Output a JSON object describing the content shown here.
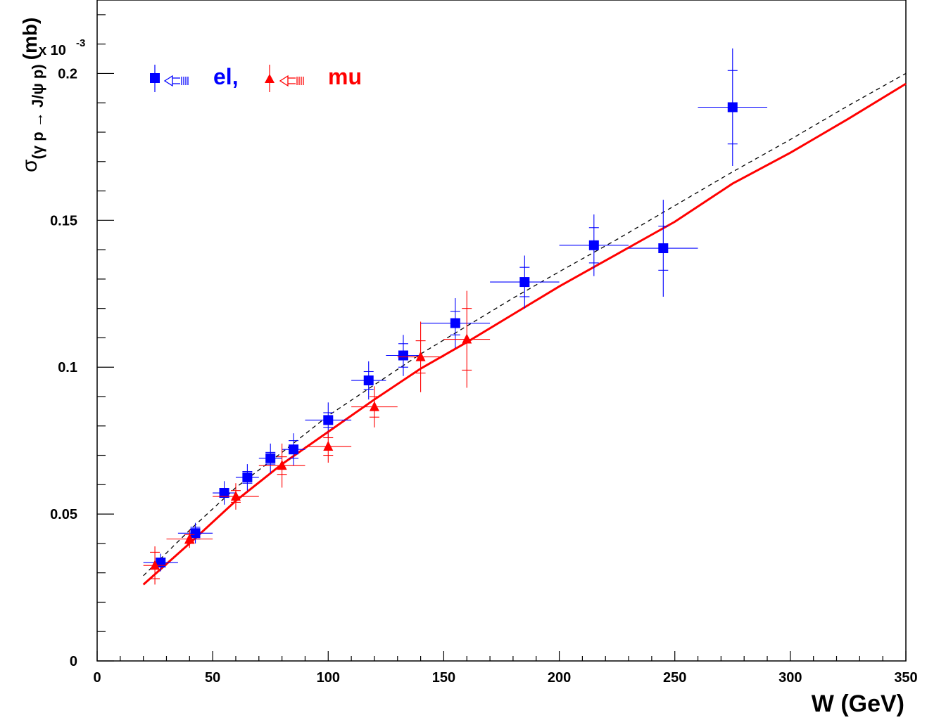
{
  "chart_data": {
    "type": "scatter",
    "title": "",
    "xlabel": "W (GeV)",
    "ylabel": {
      "main": "σ",
      "subscript": "(γ p → J/ψ p)",
      "unit": "(mb)",
      "multiplier": "x 10",
      "exponent": "-3"
    },
    "xlim": [
      0,
      350
    ],
    "ylim": [
      0,
      0.225
    ],
    "x_ticks": [
      0,
      50,
      100,
      150,
      200,
      250,
      300,
      350
    ],
    "x_tick_labels": [
      "0",
      "50",
      "100",
      "150",
      "200",
      "250",
      "300",
      "350"
    ],
    "y_ticks": [
      0,
      0.05,
      0.1,
      0.15,
      0.2
    ],
    "y_tick_labels": [
      "0",
      "0.05",
      "0.1",
      "0.15",
      "0.2"
    ],
    "grid": false,
    "legend": {
      "placement": "top-left",
      "entries": [
        {
          "label": "el,",
          "marker": "square",
          "color": "#0000ff"
        },
        {
          "label": "mu",
          "marker": "triangle",
          "color": "#ff0000"
        }
      ]
    },
    "series": [
      {
        "name": "el,",
        "marker": "square",
        "color": "#0000ff",
        "points": [
          {
            "x": 27.5,
            "y": 0.0335,
            "xerr": 7.5,
            "yerr_stat": 0.0015,
            "yerr_tot": 0.003
          },
          {
            "x": 42.5,
            "y": 0.0435,
            "xerr": 7.5,
            "yerr_stat": 0.002,
            "yerr_tot": 0.0035
          },
          {
            "x": 55,
            "y": 0.0572,
            "xerr": 5,
            "yerr_stat": 0.0015,
            "yerr_tot": 0.004
          },
          {
            "x": 65,
            "y": 0.0625,
            "xerr": 5,
            "yerr_stat": 0.002,
            "yerr_tot": 0.0045
          },
          {
            "x": 75,
            "y": 0.069,
            "xerr": 5,
            "yerr_stat": 0.002,
            "yerr_tot": 0.005
          },
          {
            "x": 85,
            "y": 0.072,
            "xerr": 5,
            "yerr_stat": 0.003,
            "yerr_tot": 0.0055
          },
          {
            "x": 100,
            "y": 0.082,
            "xerr": 10,
            "yerr_stat": 0.0025,
            "yerr_tot": 0.006
          },
          {
            "x": 117.5,
            "y": 0.0955,
            "xerr": 7.5,
            "yerr_stat": 0.003,
            "yerr_tot": 0.0065
          },
          {
            "x": 132.5,
            "y": 0.104,
            "xerr": 7.5,
            "yerr_stat": 0.004,
            "yerr_tot": 0.007
          },
          {
            "x": 155,
            "y": 0.115,
            "xerr": 15,
            "yerr_stat": 0.004,
            "yerr_tot": 0.0085
          },
          {
            "x": 185,
            "y": 0.129,
            "xerr": 15,
            "yerr_stat": 0.005,
            "yerr_tot": 0.009
          },
          {
            "x": 215,
            "y": 0.1415,
            "xerr": 15,
            "yerr_stat": 0.006,
            "yerr_tot": 0.0105
          },
          {
            "x": 245,
            "y": 0.1405,
            "xerr": 15,
            "yerr_stat": 0.0075,
            "yerr_tot": 0.0165
          },
          {
            "x": 275,
            "y": 0.1885,
            "xerr": 15,
            "yerr_stat": 0.0125,
            "yerr_tot": 0.02
          }
        ]
      },
      {
        "name": "mu",
        "marker": "triangle",
        "color": "#ff0000",
        "points": [
          {
            "x": 25,
            "y": 0.0325,
            "xerr": 5,
            "yerr_stat": 0.0045,
            "yerr_tot": 0.0065
          },
          {
            "x": 40,
            "y": 0.0415,
            "xerr": 10,
            "yerr_stat": 0.0015,
            "yerr_tot": 0.003
          },
          {
            "x": 60,
            "y": 0.056,
            "xerr": 10,
            "yerr_stat": 0.002,
            "yerr_tot": 0.0045
          },
          {
            "x": 80,
            "y": 0.0665,
            "xerr": 10,
            "yerr_stat": 0.003,
            "yerr_tot": 0.0075
          },
          {
            "x": 100,
            "y": 0.073,
            "xerr": 10,
            "yerr_stat": 0.003,
            "yerr_tot": 0.0055
          },
          {
            "x": 120,
            "y": 0.0865,
            "xerr": 10,
            "yerr_stat": 0.0035,
            "yerr_tot": 0.007
          },
          {
            "x": 140,
            "y": 0.1035,
            "xerr": 10,
            "yerr_stat": 0.0055,
            "yerr_tot": 0.012
          },
          {
            "x": 160,
            "y": 0.1095,
            "xerr": 10,
            "yerr_stat": 0.0105,
            "yerr_tot": 0.0165
          }
        ]
      }
    ],
    "curves": [
      {
        "style": "solid",
        "color": "#ff0000",
        "points": [
          [
            20,
            0.026
          ],
          [
            40,
            0.04
          ],
          [
            60,
            0.0545
          ],
          [
            80,
            0.067
          ],
          [
            100,
            0.078
          ],
          [
            120,
            0.089
          ],
          [
            140,
            0.0995
          ],
          [
            160,
            0.1085
          ],
          [
            180,
            0.118
          ],
          [
            200,
            0.1275
          ],
          [
            225,
            0.1385
          ],
          [
            250,
            0.1495
          ],
          [
            275,
            0.1625
          ],
          [
            300,
            0.173
          ],
          [
            325,
            0.1845
          ],
          [
            350,
            0.1965
          ]
        ]
      },
      {
        "style": "dashed",
        "color": "#000000",
        "points": [
          [
            20,
            0.029
          ],
          [
            40,
            0.0445
          ],
          [
            60,
            0.059
          ],
          [
            80,
            0.071
          ],
          [
            100,
            0.0835
          ],
          [
            120,
            0.094
          ],
          [
            140,
            0.1045
          ],
          [
            160,
            0.114
          ],
          [
            180,
            0.1235
          ],
          [
            200,
            0.1325
          ],
          [
            225,
            0.1435
          ],
          [
            250,
            0.155
          ],
          [
            275,
            0.1665
          ],
          [
            300,
            0.1775
          ],
          [
            325,
            0.189
          ],
          [
            350,
            0.2
          ]
        ]
      }
    ]
  }
}
